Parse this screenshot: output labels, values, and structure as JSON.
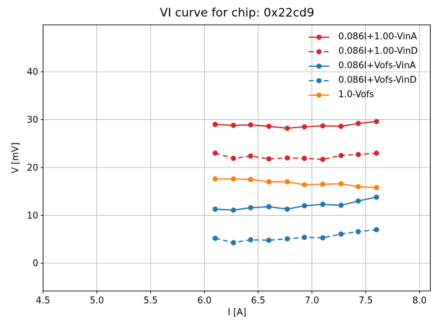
{
  "figure": {
    "title": "VI curve for chip: 0x22cd9",
    "background": "#ffffff"
  },
  "chart_data": {
    "type": "line",
    "title": "VI curve for chip: 0x22cd9",
    "xlabel": "I [A]",
    "ylabel": "V [mV]",
    "xlim": [
      4.5,
      8.1
    ],
    "ylim": [
      -5.8,
      49.8
    ],
    "xtick_labels": [
      "4.5",
      "5.0",
      "5.5",
      "6.0",
      "6.5",
      "7.0",
      "7.5",
      "8.0"
    ],
    "ytick_labels": [
      "0",
      "10",
      "20",
      "30",
      "40"
    ],
    "grid": true,
    "grid_color": "#b0b0b0",
    "axis_color": "#000000",
    "legend_position": "upper right",
    "legend_frame": false,
    "x": [
      6.1,
      6.27,
      6.43,
      6.6,
      6.77,
      6.93,
      7.1,
      7.27,
      7.43,
      7.6
    ],
    "series": [
      {
        "name": "0.086I+1.00-VinA",
        "color": "#d62728",
        "linestyle": "solid",
        "marker": "circle",
        "values": [
          29.0,
          28.8,
          28.9,
          28.6,
          28.2,
          28.5,
          28.7,
          28.6,
          29.2,
          29.6
        ]
      },
      {
        "name": "0.086I+1.00-VinD",
        "color": "#d62728",
        "linestyle": "dashed",
        "marker": "circle",
        "values": [
          23.0,
          21.9,
          22.4,
          21.8,
          22.0,
          21.9,
          21.7,
          22.5,
          22.7,
          23.0
        ]
      },
      {
        "name": "0.086I+Vofs-VinA",
        "color": "#1f77b4",
        "linestyle": "solid",
        "marker": "circle",
        "values": [
          11.3,
          11.1,
          11.6,
          11.8,
          11.3,
          12.0,
          12.3,
          12.1,
          13.0,
          13.8
        ]
      },
      {
        "name": "0.086I+Vofs-VinD",
        "color": "#1f77b4",
        "linestyle": "dashed",
        "marker": "circle",
        "values": [
          5.2,
          4.3,
          4.9,
          4.8,
          5.1,
          5.4,
          5.3,
          6.1,
          6.6,
          7.0
        ]
      },
      {
        "name": "1.0-Vofs",
        "color": "#ff7f0e",
        "linestyle": "solid",
        "marker": "circle",
        "values": [
          17.6,
          17.6,
          17.5,
          17.0,
          17.0,
          16.4,
          16.5,
          16.6,
          16.0,
          15.8
        ]
      }
    ]
  }
}
